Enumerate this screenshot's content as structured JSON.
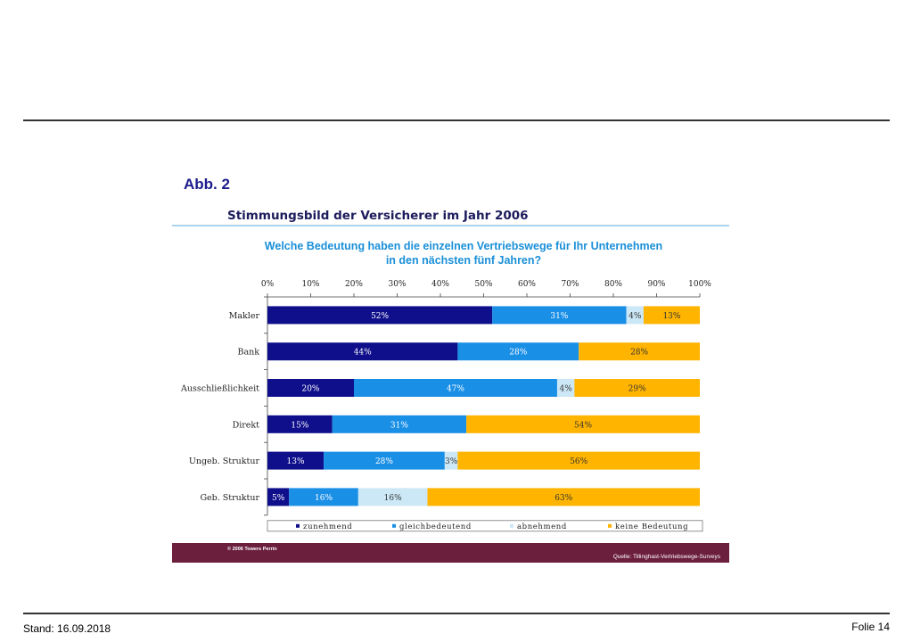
{
  "slide": {
    "figure_label": "Abb. 2",
    "panel_title": "Stimmungsbild der Versicherer im Jahr 2006",
    "question_line1": "Welche Bedeutung haben die einzelnen Vertriebswege für Ihr Unternehmen",
    "question_line2": "in den nächsten fünf Jahren?",
    "copyright": "© 2006 Towers Perrin",
    "source": "Quelle: Tillinghast-Vertriebswege-Surveys",
    "stand": "Stand: 16.09.2018",
    "folie": "Folie 14"
  },
  "colors": {
    "zunehmend": "#0f0f8c",
    "gleichbedeutend": "#1a8fe6",
    "abnehmend": "#cce8f7",
    "keine_bedeutung": "#ffb400",
    "footer": "#6b1f3c",
    "question": "#1a8fd8"
  },
  "chart_data": {
    "type": "bar",
    "orientation": "horizontal",
    "stacked": true,
    "percent_axis_position": "top",
    "xlim": [
      0,
      100
    ],
    "x_ticks": [
      "0%",
      "10%",
      "20%",
      "30%",
      "40%",
      "50%",
      "60%",
      "70%",
      "80%",
      "90%",
      "100%"
    ],
    "categories": [
      "Makler",
      "Bank",
      "Ausschließlichkeit",
      "Direkt",
      "Ungeb. Struktur",
      "Geb. Struktur"
    ],
    "series": [
      {
        "name": "zunehmend",
        "values": [
          52,
          44,
          20,
          15,
          13,
          5
        ],
        "labels": [
          "52%",
          "44%",
          "20%",
          "15%",
          "13%",
          "5%"
        ]
      },
      {
        "name": "gleichbedeutend",
        "values": [
          31,
          28,
          47,
          31,
          28,
          16
        ],
        "labels": [
          "31%",
          "28%",
          "47%",
          "31%",
          "28%",
          "16%"
        ]
      },
      {
        "name": "abnehmend",
        "values": [
          4,
          0,
          4,
          0,
          3,
          16
        ],
        "labels": [
          "4%",
          "",
          "4%",
          "",
          "3%",
          "16%"
        ]
      },
      {
        "name": "keine Bedeutung",
        "values": [
          13,
          28,
          29,
          54,
          56,
          63
        ],
        "labels": [
          "13%",
          "28%",
          "29%",
          "54%",
          "56%",
          "63%"
        ]
      }
    ],
    "legend_placement": "bottom",
    "grid": false
  }
}
